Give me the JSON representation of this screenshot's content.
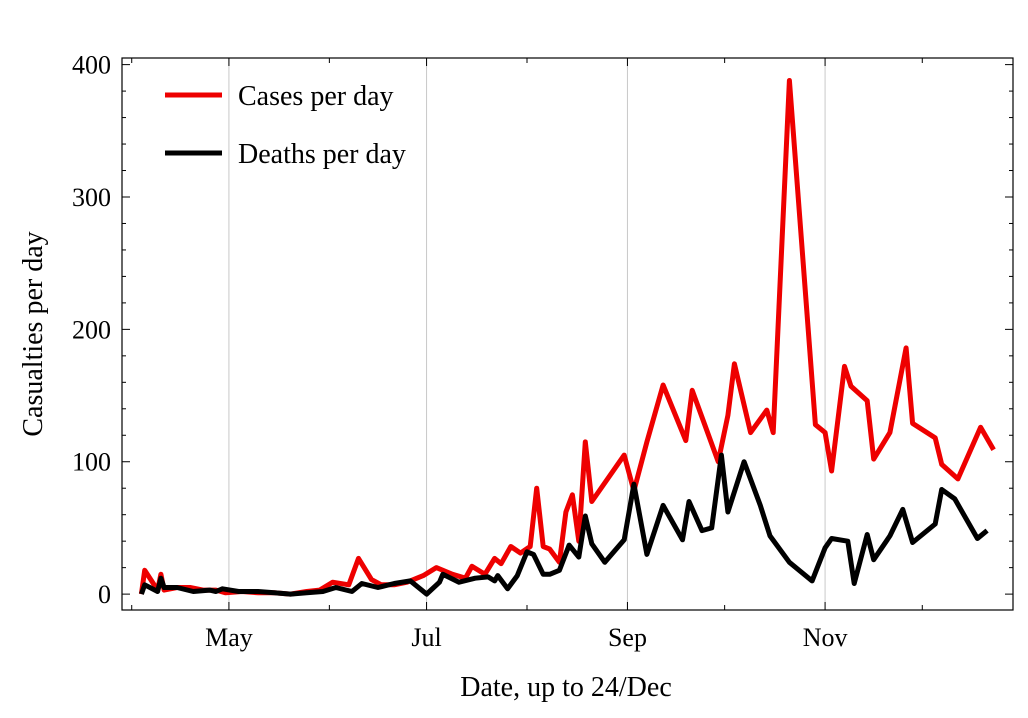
{
  "chart_data": {
    "type": "line",
    "title": "",
    "xlabel": "Date, up to 24/Dec",
    "ylabel": "Casualties per day",
    "x_ticks": [
      "May",
      "Jul",
      "Sep",
      "Nov"
    ],
    "x_tick_dates": [
      "2020-05-01",
      "2020-07-01",
      "2020-09-01",
      "2020-11-01"
    ],
    "y_ticks": [
      0,
      100,
      200,
      300,
      400
    ],
    "xlim": [
      "2020-03-29",
      "2020-12-29"
    ],
    "ylim": [
      -12,
      405
    ],
    "grid": "vertical lines at month ticks",
    "legend_position": "top-left",
    "series": [
      {
        "name": "Cases per day",
        "color": "#ee0000",
        "points": [
          [
            "2020-04-04",
            0
          ],
          [
            "2020-04-05",
            18
          ],
          [
            "2020-04-09",
            3
          ],
          [
            "2020-04-10",
            15
          ],
          [
            "2020-04-11",
            3
          ],
          [
            "2020-04-15",
            5
          ],
          [
            "2020-04-19",
            5
          ],
          [
            "2020-04-23",
            3
          ],
          [
            "2020-04-27",
            3
          ],
          [
            "2020-04-30",
            1
          ],
          [
            "2020-05-05",
            2
          ],
          [
            "2020-05-10",
            1
          ],
          [
            "2020-05-15",
            1
          ],
          [
            "2020-05-20",
            0
          ],
          [
            "2020-05-25",
            2
          ],
          [
            "2020-05-29",
            3
          ],
          [
            "2020-06-02",
            9
          ],
          [
            "2020-06-07",
            7
          ],
          [
            "2020-06-10",
            27
          ],
          [
            "2020-06-14",
            11
          ],
          [
            "2020-06-17",
            7
          ],
          [
            "2020-06-21",
            7
          ],
          [
            "2020-06-25",
            9
          ],
          [
            "2020-06-30",
            14
          ],
          [
            "2020-07-04",
            20
          ],
          [
            "2020-07-09",
            15
          ],
          [
            "2020-07-13",
            12
          ],
          [
            "2020-07-15",
            21
          ],
          [
            "2020-07-19",
            15
          ],
          [
            "2020-07-22",
            27
          ],
          [
            "2020-07-24",
            23
          ],
          [
            "2020-07-27",
            36
          ],
          [
            "2020-07-30",
            31
          ],
          [
            "2020-08-02",
            36
          ],
          [
            "2020-08-04",
            80
          ],
          [
            "2020-08-06",
            36
          ],
          [
            "2020-08-08",
            34
          ],
          [
            "2020-08-11",
            24
          ],
          [
            "2020-08-13",
            62
          ],
          [
            "2020-08-15",
            75
          ],
          [
            "2020-08-17",
            40
          ],
          [
            "2020-08-19",
            115
          ],
          [
            "2020-08-21",
            70
          ],
          [
            "2020-08-31",
            105
          ],
          [
            "2020-09-03",
            78
          ],
          [
            "2020-09-07",
            115
          ],
          [
            "2020-09-12",
            158
          ],
          [
            "2020-09-19",
            116
          ],
          [
            "2020-09-21",
            154
          ],
          [
            "2020-09-25",
            127
          ],
          [
            "2020-09-29",
            100
          ],
          [
            "2020-10-02",
            135
          ],
          [
            "2020-10-04",
            174
          ],
          [
            "2020-10-09",
            122
          ],
          [
            "2020-10-14",
            139
          ],
          [
            "2020-10-16",
            122
          ],
          [
            "2020-10-21",
            388
          ],
          [
            "2020-10-29",
            128
          ],
          [
            "2020-11-01",
            122
          ],
          [
            "2020-11-03",
            93
          ],
          [
            "2020-11-07",
            172
          ],
          [
            "2020-11-09",
            157
          ],
          [
            "2020-11-14",
            146
          ],
          [
            "2020-11-16",
            102
          ],
          [
            "2020-11-21",
            122
          ],
          [
            "2020-11-26",
            186
          ],
          [
            "2020-11-28",
            129
          ],
          [
            "2020-12-05",
            118
          ],
          [
            "2020-12-07",
            98
          ],
          [
            "2020-12-12",
            87
          ],
          [
            "2020-12-19",
            126
          ],
          [
            "2020-12-23",
            109
          ]
        ]
      },
      {
        "name": "Deaths per day",
        "color": "#000000",
        "points": [
          [
            "2020-04-04",
            0
          ],
          [
            "2020-04-05",
            7
          ],
          [
            "2020-04-09",
            2
          ],
          [
            "2020-04-10",
            12
          ],
          [
            "2020-04-11",
            5
          ],
          [
            "2020-04-15",
            5
          ],
          [
            "2020-04-20",
            2
          ],
          [
            "2020-04-25",
            3
          ],
          [
            "2020-04-27",
            2
          ],
          [
            "2020-04-29",
            4
          ],
          [
            "2020-05-04",
            2
          ],
          [
            "2020-05-10",
            2
          ],
          [
            "2020-05-15",
            1
          ],
          [
            "2020-05-20",
            0
          ],
          [
            "2020-05-25",
            1
          ],
          [
            "2020-05-30",
            2
          ],
          [
            "2020-06-03",
            5
          ],
          [
            "2020-06-08",
            2
          ],
          [
            "2020-06-11",
            8
          ],
          [
            "2020-06-16",
            5
          ],
          [
            "2020-06-21",
            8
          ],
          [
            "2020-06-26",
            10
          ],
          [
            "2020-07-01",
            0
          ],
          [
            "2020-07-05",
            9
          ],
          [
            "2020-07-06",
            15
          ],
          [
            "2020-07-11",
            9
          ],
          [
            "2020-07-16",
            12
          ],
          [
            "2020-07-20",
            13
          ],
          [
            "2020-07-22",
            10
          ],
          [
            "2020-07-23",
            14
          ],
          [
            "2020-07-26",
            4
          ],
          [
            "2020-07-29",
            14
          ],
          [
            "2020-08-01",
            32
          ],
          [
            "2020-08-03",
            30
          ],
          [
            "2020-08-06",
            15
          ],
          [
            "2020-08-08",
            15
          ],
          [
            "2020-08-11",
            18
          ],
          [
            "2020-08-14",
            37
          ],
          [
            "2020-08-17",
            28
          ],
          [
            "2020-08-19",
            59
          ],
          [
            "2020-08-21",
            38
          ],
          [
            "2020-08-25",
            24
          ],
          [
            "2020-08-31",
            41
          ],
          [
            "2020-09-03",
            83
          ],
          [
            "2020-09-07",
            30
          ],
          [
            "2020-09-12",
            67
          ],
          [
            "2020-09-18",
            41
          ],
          [
            "2020-09-20",
            70
          ],
          [
            "2020-09-24",
            48
          ],
          [
            "2020-09-27",
            50
          ],
          [
            "2020-09-30",
            105
          ],
          [
            "2020-10-02",
            62
          ],
          [
            "2020-10-07",
            100
          ],
          [
            "2020-10-12",
            67
          ],
          [
            "2020-10-15",
            44
          ],
          [
            "2020-10-21",
            24
          ],
          [
            "2020-10-28",
            10
          ],
          [
            "2020-11-01",
            35
          ],
          [
            "2020-11-03",
            42
          ],
          [
            "2020-11-08",
            40
          ],
          [
            "2020-11-10",
            8
          ],
          [
            "2020-11-14",
            45
          ],
          [
            "2020-11-16",
            26
          ],
          [
            "2020-11-21",
            44
          ],
          [
            "2020-11-25",
            64
          ],
          [
            "2020-11-28",
            39
          ],
          [
            "2020-12-05",
            53
          ],
          [
            "2020-12-07",
            79
          ],
          [
            "2020-12-11",
            72
          ],
          [
            "2020-12-18",
            42
          ],
          [
            "2020-12-21",
            48
          ]
        ]
      }
    ]
  }
}
